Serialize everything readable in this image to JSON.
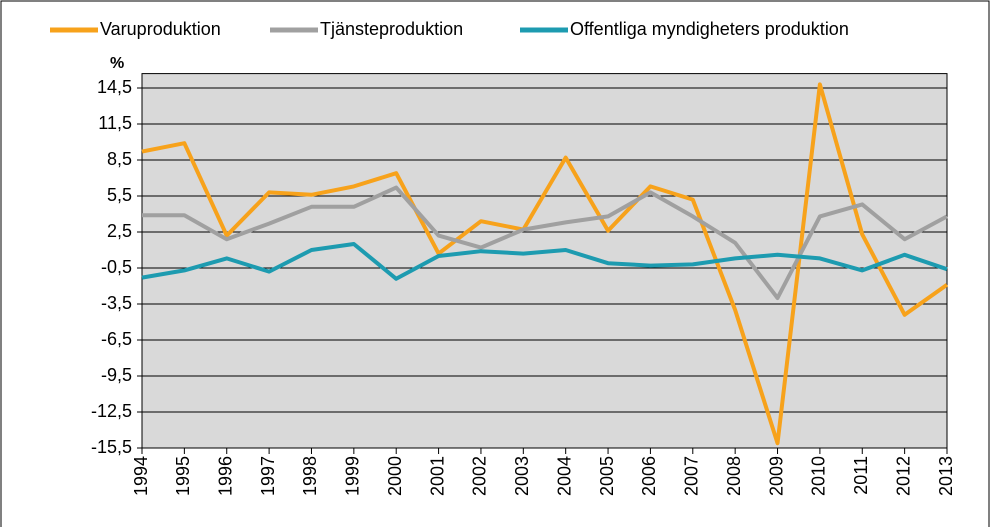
{
  "chart_data": {
    "type": "line",
    "y_unit_label": "%",
    "categories": [
      "1994",
      "1995",
      "1996",
      "1997",
      "1998",
      "1999",
      "2000",
      "2001",
      "2002",
      "2003",
      "2004",
      "2005",
      "2006",
      "2007",
      "2008",
      "2009",
      "2010",
      "2011",
      "2012",
      "2013"
    ],
    "series": [
      {
        "name": "Varuproduktion",
        "color": "#f7a21b",
        "values": [
          9.2,
          9.9,
          2.2,
          5.8,
          5.6,
          6.3,
          7.4,
          0.7,
          3.4,
          2.7,
          8.7,
          2.6,
          6.3,
          5.2,
          -4.0,
          -15.1,
          14.8,
          2.3,
          -4.4,
          -1.9
        ]
      },
      {
        "name": "Tjänsteproduktion",
        "color": "#a0a0a0",
        "values": [
          3.9,
          3.9,
          1.9,
          3.2,
          4.6,
          4.6,
          6.2,
          2.2,
          1.2,
          2.7,
          3.3,
          3.8,
          5.8,
          3.8,
          1.6,
          -3.0,
          3.8,
          4.8,
          1.9,
          3.8
        ]
      },
      {
        "name": "Offentliga myndigheters produktion",
        "color": "#1d9bb0",
        "values": [
          -1.3,
          -0.7,
          0.3,
          -0.8,
          1.0,
          1.5,
          -1.4,
          0.5,
          0.9,
          0.7,
          1.0,
          -0.1,
          -0.3,
          -0.2,
          0.3,
          0.6,
          0.3,
          -0.7,
          0.6,
          -0.6
        ]
      }
    ],
    "ylim": [
      -15.5,
      15.7
    ],
    "yticks": [
      {
        "value": -15.5,
        "label": "-15,5"
      },
      {
        "value": -12.5,
        "label": "-12,5"
      },
      {
        "value": -9.5,
        "label": "-9,5"
      },
      {
        "value": -6.5,
        "label": "-6,5"
      },
      {
        "value": -3.5,
        "label": "-3,5"
      },
      {
        "value": -0.5,
        "label": "-0,5"
      },
      {
        "value": 2.5,
        "label": "2,5"
      },
      {
        "value": 5.5,
        "label": "5,5"
      },
      {
        "value": 8.5,
        "label": "8,5"
      },
      {
        "value": 11.5,
        "label": "11,5"
      },
      {
        "value": 14.5,
        "label": "14,5"
      }
    ],
    "grid": true,
    "background": "#d9d9d9"
  }
}
